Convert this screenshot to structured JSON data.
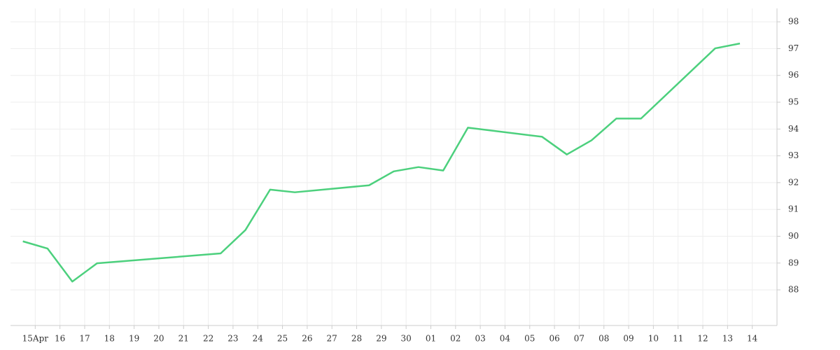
{
  "chart_data": {
    "type": "line",
    "x": [
      -0.5,
      0.5,
      1.5,
      2.5,
      7.5,
      8.5,
      9.5,
      10.5,
      13.5,
      14.5,
      15.5,
      16.5,
      17.5,
      20.5,
      21.5,
      22.5,
      23.5,
      24.5,
      27.5,
      28.5
    ],
    "series": [
      {
        "color": "#4cd07d",
        "values": [
          89.81,
          89.54,
          88.31,
          88.99,
          89.36,
          90.23,
          91.74,
          91.64,
          91.9,
          92.42,
          92.58,
          92.45,
          94.05,
          93.71,
          93.05,
          93.58,
          94.39,
          94.39,
          97.01,
          97.19
        ]
      }
    ],
    "xlim": [
      -1,
      30
    ],
    "xticks": [
      {
        "value": 0,
        "label": "15Apr"
      },
      {
        "value": 1,
        "label": "16"
      },
      {
        "value": 2,
        "label": "17"
      },
      {
        "value": 3,
        "label": "18"
      },
      {
        "value": 4,
        "label": "19"
      },
      {
        "value": 5,
        "label": "20"
      },
      {
        "value": 6,
        "label": "21"
      },
      {
        "value": 7,
        "label": "22"
      },
      {
        "value": 8,
        "label": "23"
      },
      {
        "value": 9,
        "label": "24"
      },
      {
        "value": 10,
        "label": "25"
      },
      {
        "value": 11,
        "label": "26"
      },
      {
        "value": 12,
        "label": "27"
      },
      {
        "value": 13,
        "label": "28"
      },
      {
        "value": 14,
        "label": "29"
      },
      {
        "value": 15,
        "label": "30"
      },
      {
        "value": 16,
        "label": "01"
      },
      {
        "value": 17,
        "label": "02"
      },
      {
        "value": 18,
        "label": "03"
      },
      {
        "value": 19,
        "label": "04"
      },
      {
        "value": 20,
        "label": "05"
      },
      {
        "value": 21,
        "label": "06"
      },
      {
        "value": 22,
        "label": "07"
      },
      {
        "value": 23,
        "label": "08"
      },
      {
        "value": 24,
        "label": "09"
      },
      {
        "value": 25,
        "label": "10"
      },
      {
        "value": 26,
        "label": "11"
      },
      {
        "value": 27,
        "label": "12"
      },
      {
        "value": 28,
        "label": "13"
      },
      {
        "value": 29,
        "label": "14"
      }
    ],
    "ylim": [
      86.67,
      98.5
    ],
    "yticks": [
      88,
      89,
      90,
      91,
      92,
      93,
      94,
      95,
      96,
      97,
      98
    ],
    "grid": true
  }
}
